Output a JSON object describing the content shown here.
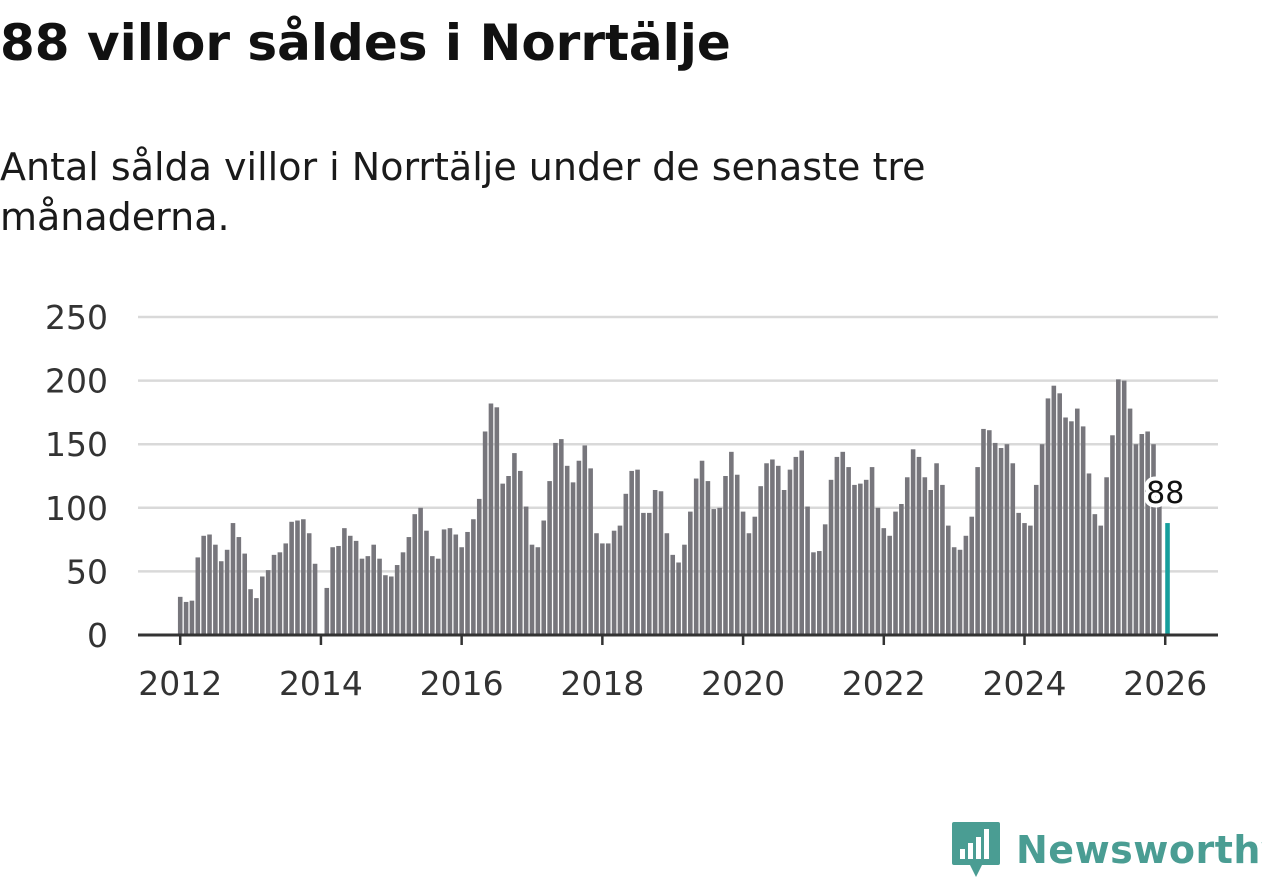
{
  "title": "88 villor såldes i Norrtälje",
  "subtitle": "Antal sålda villor i Norrtälje under de senaste tre månaderna.",
  "brand": {
    "name": "Newsworthy",
    "color": "#4a9d93",
    "icon": "bar-chart-pin-icon"
  },
  "colors": {
    "bar": "#77767c",
    "highlight": "#169f9d",
    "grid": "#d9d9d9",
    "axis": "#333333"
  },
  "chart_data": {
    "type": "bar",
    "title": "88 villor såldes i Norrtälje",
    "ylabel": "",
    "xlabel": "",
    "ylim": [
      0,
      250
    ],
    "yticks": [
      "0",
      "50",
      "100",
      "150",
      "200",
      "250"
    ],
    "ytick_values": [
      0,
      50,
      100,
      150,
      200,
      250
    ],
    "xlim": [
      2011.4,
      2026.75
    ],
    "xticks": [
      "2012",
      "2014",
      "2016",
      "2018",
      "2020",
      "2022",
      "2024",
      "2026"
    ],
    "xtick_values": [
      2012,
      2014,
      2016,
      2018,
      2020,
      2022,
      2024,
      2026
    ],
    "start_year": 2012,
    "start_month": 1,
    "highlight_label": "88",
    "values": [
      30,
      26,
      27,
      61,
      78,
      79,
      71,
      58,
      67,
      88,
      77,
      64,
      36,
      29,
      46,
      51,
      63,
      65,
      72,
      89,
      90,
      91,
      80,
      56,
      0,
      37,
      69,
      70,
      84,
      78,
      74,
      60,
      62,
      71,
      60,
      47,
      46,
      55,
      65,
      77,
      95,
      100,
      82,
      62,
      60,
      83,
      84,
      79,
      69,
      81,
      91,
      107,
      160,
      182,
      179,
      119,
      125,
      143,
      129,
      101,
      71,
      69,
      90,
      121,
      151,
      154,
      133,
      120,
      137,
      149,
      131,
      80,
      72,
      72,
      82,
      86,
      111,
      129,
      130,
      96,
      96,
      114,
      113,
      80,
      63,
      57,
      71,
      97,
      123,
      137,
      121,
      99,
      100,
      125,
      144,
      126,
      97,
      80,
      93,
      117,
      135,
      138,
      133,
      114,
      130,
      140,
      145,
      101,
      65,
      66,
      87,
      122,
      140,
      144,
      132,
      118,
      119,
      122,
      132,
      100,
      84,
      78,
      97,
      103,
      124,
      146,
      140,
      124,
      114,
      135,
      118,
      86,
      69,
      67,
      78,
      93,
      132,
      162,
      161,
      151,
      147,
      150,
      135,
      96,
      88,
      86,
      118,
      150,
      186,
      196,
      190,
      171,
      168,
      178,
      164,
      127,
      95,
      86,
      124,
      157,
      201,
      200,
      178,
      150,
      158,
      160,
      150,
      102,
      88
    ]
  }
}
